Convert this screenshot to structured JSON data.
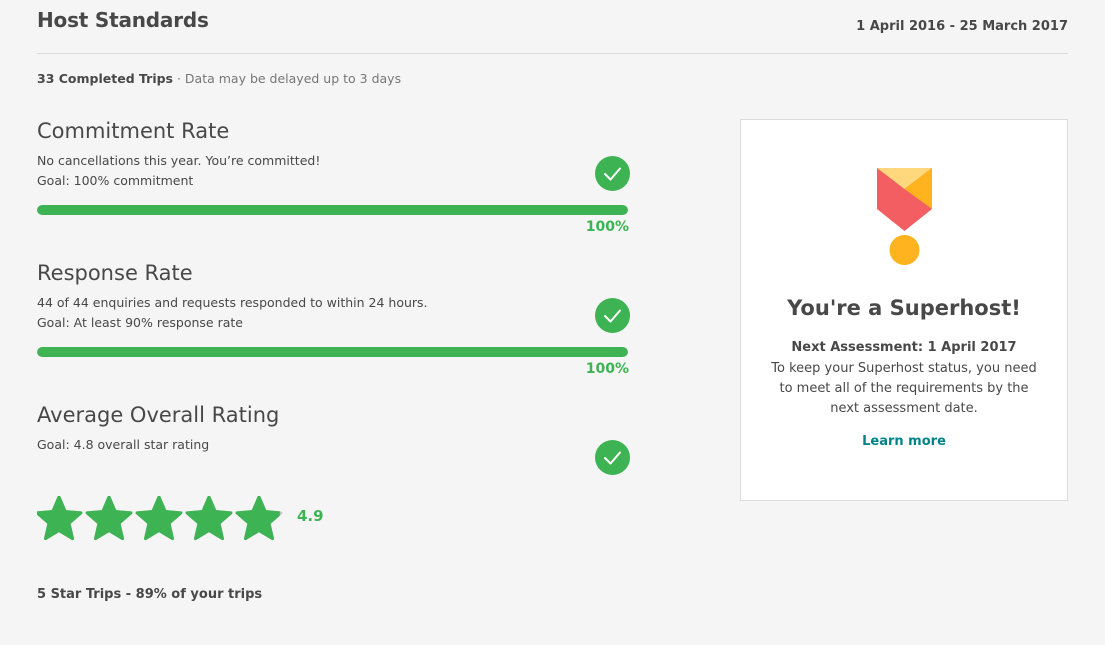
{
  "header": {
    "title": "Host Standards",
    "date_range": "1 April 2016 - 25 March 2017"
  },
  "summary": {
    "trips": "33 Completed Trips",
    "separator": " · ",
    "note": "Data may be delayed up to 3 days"
  },
  "colors": {
    "accent": "#3db354",
    "link": "#008489",
    "text": "#484848",
    "medal_red": "#f25e62",
    "medal_yellow": "#ffb41f",
    "medal_light": "#ffd87e"
  },
  "commitment": {
    "title": "Commitment Rate",
    "line1": "No cancellations this year. You’re committed!",
    "line2": "Goal: 100% commitment",
    "progress_percent": 100,
    "label": "100%",
    "status_icon": "check-circle-icon"
  },
  "response": {
    "title": "Response Rate",
    "line1": "44 of 44 enquiries and requests responded to within 24 hours.",
    "line2": "Goal: At least 90% response rate",
    "progress_percent": 100,
    "label": "100%",
    "status_icon": "check-circle-icon"
  },
  "rating": {
    "title": "Average Overall Rating",
    "line1": "Goal: 4.8 overall star rating",
    "value": 4.9,
    "value_label": "4.9",
    "max_stars": 5,
    "five_star_trips": "5 Star Trips - 89% of your trips",
    "status_icon": "check-circle-icon"
  },
  "superhost_card": {
    "icon": "superhost-medal-icon",
    "title": "You're a Superhost!",
    "next_assessment": "Next Assessment: 1 April 2017",
    "description": "To keep your Superhost status, you need to meet all of the requirements by the next assessment date.",
    "link": "Learn more"
  }
}
